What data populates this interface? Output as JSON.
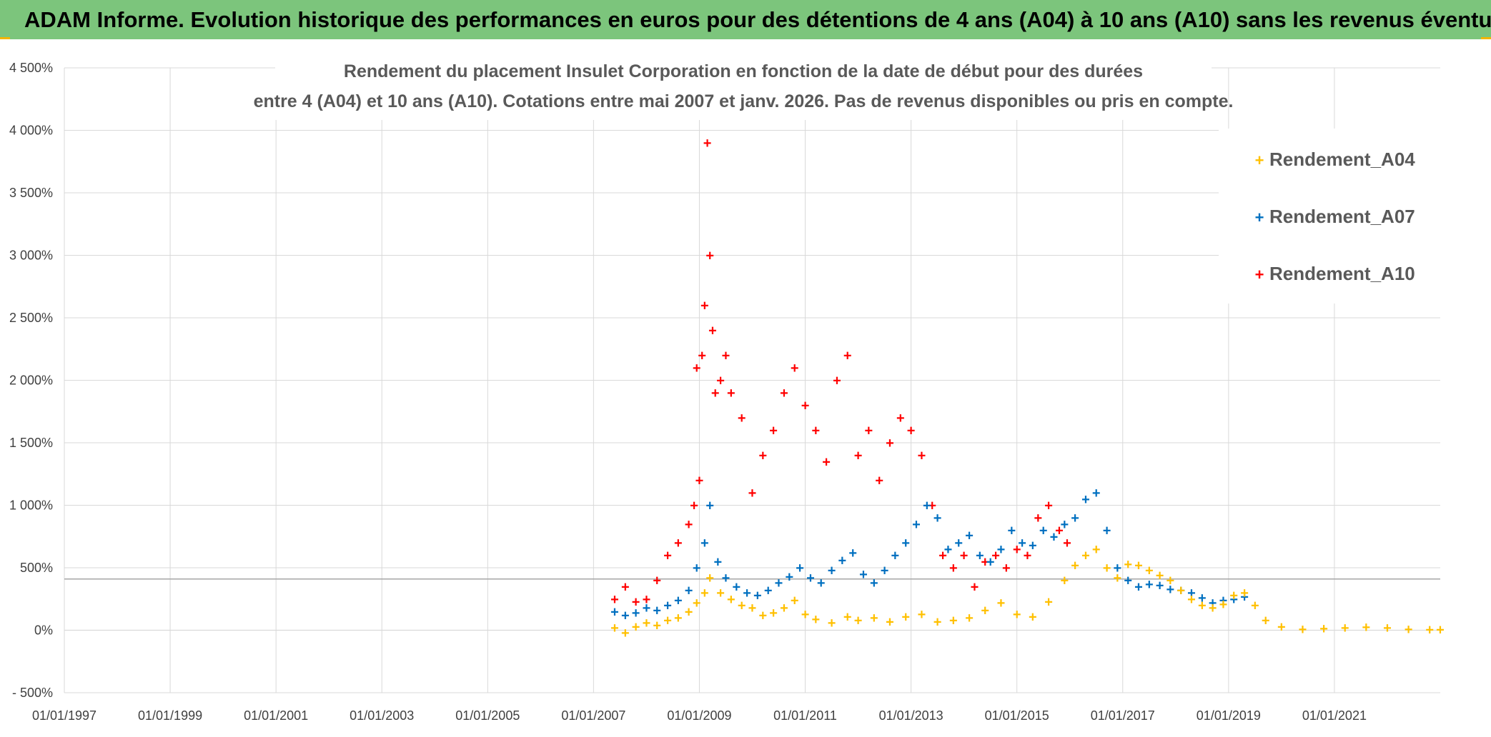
{
  "header": {
    "title": "ADAM Informe. Evolution historique des performances en euros pour des détentions de 4 ans (A04) à 10 ans (A10) sans les revenus éventuels"
  },
  "colors": {
    "header_bg": "#7cc57c",
    "A04": "#ffc000",
    "A07": "#0070c0",
    "A10": "#ff0000",
    "grid": "#d9d9d9",
    "ref_line": "#a6a6a6"
  },
  "chart_data": {
    "type": "scatter",
    "title_lines": [
      "Rendement du placement Insulet Corporation en fonction de la date de début pour des durées",
      "entre 4 (A04) et 10 ans (A10). Cotations entre mai 2007 et janv. 2026. Pas de revenus disponibles ou pris en compte."
    ],
    "xlabel": "",
    "ylabel": "",
    "x_range_years": [
      1997.0,
      2023.0
    ],
    "ylim": [
      -500,
      4500
    ],
    "y_ticks": [
      -500,
      0,
      500,
      1000,
      1500,
      2000,
      2500,
      3000,
      3500,
      4000,
      4500
    ],
    "y_tick_labels": [
      "- 500%",
      "0%",
      "500%",
      "1 000%",
      "1 500%",
      "2 000%",
      "2 500%",
      "3 000%",
      "3 500%",
      "4 000%",
      "4 500%"
    ],
    "x_tick_years": [
      1997,
      1999,
      2001,
      2003,
      2005,
      2007,
      2009,
      2011,
      2013,
      2015,
      2017,
      2019,
      2021
    ],
    "x_tick_labels": [
      "01/01/1997",
      "01/01/1999",
      "01/01/2001",
      "01/01/2003",
      "01/01/2005",
      "01/01/2007",
      "01/01/2009",
      "01/01/2011",
      "01/01/2013",
      "01/01/2015",
      "01/01/2017",
      "01/01/2019",
      "01/01/2021"
    ],
    "reference_line_y": 410,
    "legend": {
      "position": "top-right"
    },
    "series": [
      {
        "name": "Rendement_A04",
        "color": "#ffc000",
        "x": [
          2007.4,
          2007.6,
          2007.8,
          2008.0,
          2008.2,
          2008.4,
          2008.6,
          2008.8,
          2008.95,
          2009.1,
          2009.2,
          2009.4,
          2009.6,
          2009.8,
          2010.0,
          2010.2,
          2010.4,
          2010.6,
          2010.8,
          2011.0,
          2011.2,
          2011.5,
          2011.8,
          2012.0,
          2012.3,
          2012.6,
          2012.9,
          2013.2,
          2013.5,
          2013.8,
          2014.1,
          2014.4,
          2014.7,
          2015.0,
          2015.3,
          2015.6,
          2015.9,
          2016.1,
          2016.3,
          2016.5,
          2016.7,
          2016.9,
          2017.1,
          2017.3,
          2017.5,
          2017.7,
          2017.9,
          2018.1,
          2018.3,
          2018.5,
          2018.7,
          2018.9,
          2019.1,
          2019.3,
          2019.5,
          2019.7,
          2020.0,
          2020.4,
          2020.8,
          2021.2,
          2021.6,
          2022.0,
          2022.4,
          2022.8,
          2023.0
        ],
        "values": [
          20,
          -20,
          30,
          60,
          40,
          80,
          100,
          150,
          220,
          300,
          420,
          300,
          250,
          200,
          180,
          120,
          140,
          180,
          240,
          130,
          90,
          60,
          110,
          80,
          100,
          70,
          110,
          130,
          70,
          80,
          100,
          160,
          220,
          130,
          110,
          230,
          400,
          520,
          600,
          650,
          500,
          420,
          530,
          520,
          480,
          440,
          400,
          320,
          250,
          200,
          180,
          210,
          280,
          300,
          200,
          80,
          30,
          10,
          15,
          20,
          25,
          20,
          10,
          5,
          5
        ]
      },
      {
        "name": "Rendement_A07",
        "color": "#0070c0",
        "x": [
          2007.4,
          2007.6,
          2007.8,
          2008.0,
          2008.2,
          2008.4,
          2008.6,
          2008.8,
          2008.95,
          2009.1,
          2009.2,
          2009.35,
          2009.5,
          2009.7,
          2009.9,
          2010.1,
          2010.3,
          2010.5,
          2010.7,
          2010.9,
          2011.1,
          2011.3,
          2011.5,
          2011.7,
          2011.9,
          2012.1,
          2012.3,
          2012.5,
          2012.7,
          2012.9,
          2013.1,
          2013.3,
          2013.5,
          2013.7,
          2013.9,
          2014.1,
          2014.3,
          2014.5,
          2014.7,
          2014.9,
          2015.1,
          2015.3,
          2015.5,
          2015.7,
          2015.9,
          2016.1,
          2016.3,
          2016.5,
          2016.7,
          2016.9,
          2017.1,
          2017.3,
          2017.5,
          2017.7,
          2017.9,
          2018.1,
          2018.3,
          2018.5,
          2018.7,
          2018.9,
          2019.1,
          2019.3
        ],
        "values": [
          150,
          120,
          140,
          180,
          160,
          200,
          240,
          320,
          500,
          700,
          1000,
          550,
          420,
          350,
          300,
          280,
          320,
          380,
          430,
          500,
          420,
          380,
          480,
          560,
          620,
          450,
          380,
          480,
          600,
          700,
          850,
          1000,
          900,
          650,
          700,
          760,
          600,
          550,
          650,
          800,
          700,
          680,
          800,
          750,
          850,
          900,
          1050,
          1100,
          800,
          500,
          400,
          350,
          370,
          360,
          330,
          320,
          300,
          260,
          220,
          240,
          250,
          270
        ]
      },
      {
        "name": "Rendement_A10",
        "color": "#ff0000",
        "x": [
          2007.4,
          2007.6,
          2007.8,
          2008.0,
          2008.2,
          2008.4,
          2008.6,
          2008.8,
          2008.9,
          2008.95,
          2009.0,
          2009.05,
          2009.1,
          2009.15,
          2009.2,
          2009.25,
          2009.3,
          2009.4,
          2009.5,
          2009.6,
          2009.8,
          2010.0,
          2010.2,
          2010.4,
          2010.6,
          2010.8,
          2011.0,
          2011.2,
          2011.4,
          2011.6,
          2011.8,
          2012.0,
          2012.2,
          2012.4,
          2012.6,
          2012.8,
          2013.0,
          2013.2,
          2013.4,
          2013.6,
          2013.8,
          2014.0,
          2014.2,
          2014.4,
          2014.6,
          2014.8,
          2015.0,
          2015.2,
          2015.4,
          2015.6,
          2015.8,
          2015.95
        ],
        "values": [
          250,
          350,
          230,
          250,
          400,
          600,
          700,
          850,
          1000,
          2100,
          1200,
          2200,
          2600,
          3900,
          3000,
          2400,
          1900,
          2000,
          2200,
          1900,
          1700,
          1100,
          1400,
          1600,
          1900,
          2100,
          1800,
          1600,
          1350,
          2000,
          2200,
          1400,
          1600,
          1200,
          1500,
          1700,
          1600,
          1400,
          1000,
          600,
          500,
          600,
          350,
          550,
          600,
          500,
          650,
          600,
          900,
          1000,
          800,
          700
        ]
      }
    ]
  }
}
